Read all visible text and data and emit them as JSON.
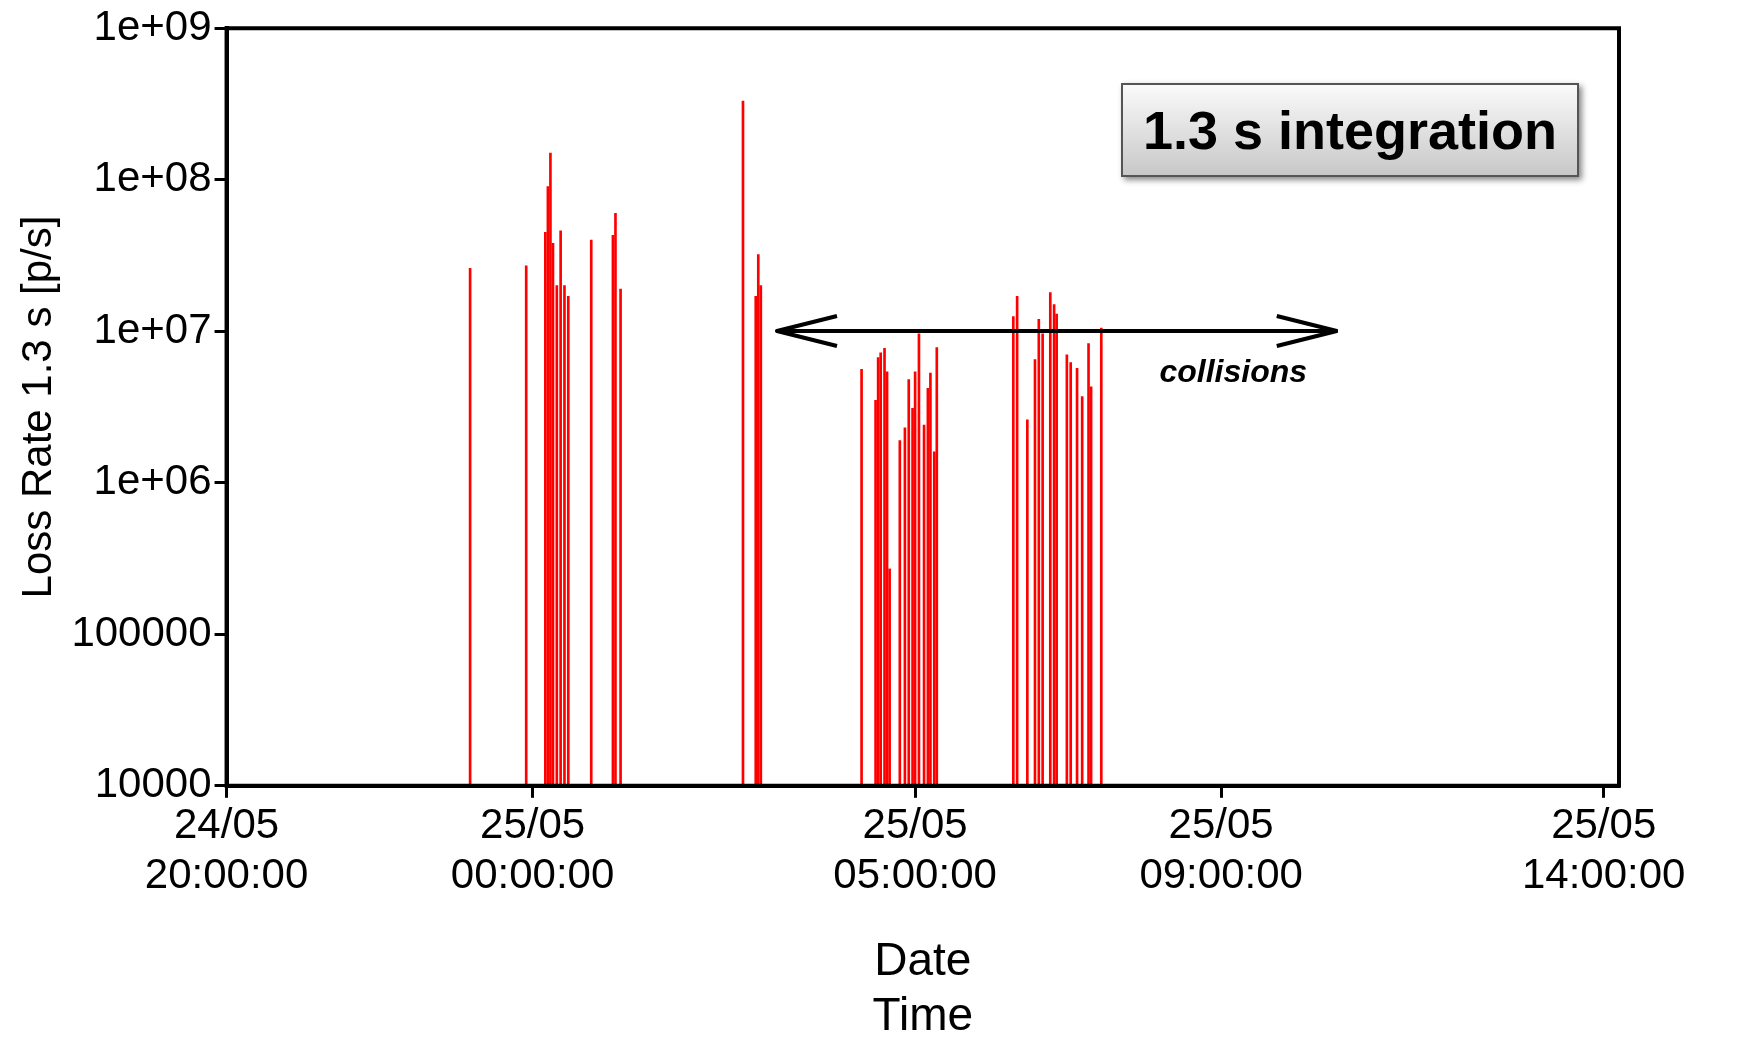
{
  "chart_data": {
    "type": "bar",
    "xlabel": "Date\nTime",
    "ylabel": "Loss Rate 1.3 s [p/s]",
    "log": "y",
    "legend": false,
    "grid": false,
    "xlim": [
      "--05-24T20:00",
      "--05-25T14:12"
    ],
    "xticks": [
      {
        "value": "--05-24T20:00",
        "label": "24/05\n20:00:00"
      },
      {
        "value": "--05-25T00:00",
        "label": "25/05\n00:00:00"
      },
      {
        "value": "--05-25T05:00",
        "label": "25/05\n05:00:00"
      },
      {
        "value": "--05-25T09:00",
        "label": "25/05\n09:00:00"
      },
      {
        "value": "--05-25T14:00",
        "label": "25/05\n14:00:00"
      }
    ],
    "ylim": [
      10000,
      1000000000
    ],
    "yticks": [
      {
        "value": 10000,
        "label": "10000"
      },
      {
        "value": 100000,
        "label": "100000"
      },
      {
        "value": 1000000,
        "label": "1e+06"
      },
      {
        "value": 10000000,
        "label": "1e+07"
      },
      {
        "value": 100000000,
        "label": "1e+08"
      },
      {
        "value": 1000000000,
        "label": "1e+09"
      }
    ],
    "annotations": [
      "1.3 s integration",
      "collisions"
    ],
    "series": [
      {
        "color": "#ff0000",
        "x": [
          "--05-24T23:11",
          "--05-24T23:55",
          "--05-25T00:10",
          "--05-25T00:12",
          "--05-25T00:14",
          "--05-25T00:16",
          "--05-25T00:19",
          "--05-25T00:22",
          "--05-25T00:25",
          "--05-25T00:28",
          "--05-25T00:46",
          "--05-25T01:03",
          "--05-25T01:05",
          "--05-25T01:09",
          "--05-25T02:45",
          "--05-25T02:55",
          "--05-25T02:57",
          "--05-25T02:59",
          "--05-25T04:18",
          "--05-25T04:29",
          "--05-25T04:31",
          "--05-25T04:33",
          "--05-25T04:36",
          "--05-25T04:38",
          "--05-25T04:40",
          "--05-25T04:48",
          "--05-25T04:52",
          "--05-25T04:55",
          "--05-25T04:58",
          "--05-25T05:00",
          "--05-25T05:03",
          "--05-25T05:07",
          "--05-25T05:10",
          "--05-25T05:12",
          "--05-25T05:15",
          "--05-25T05:17",
          "--05-25T06:17",
          "--05-25T06:20",
          "--05-25T06:28",
          "--05-25T06:34",
          "--05-25T06:37",
          "--05-25T06:40",
          "--05-25T06:46",
          "--05-25T06:49",
          "--05-25T06:51",
          "--05-25T06:59",
          "--05-25T07:02",
          "--05-25T07:07",
          "--05-25T07:11",
          "--05-25T07:16",
          "--05-25T07:18",
          "--05-25T07:26"
        ],
        "values": [
          26000000,
          27000000,
          45000000,
          90000000,
          150000000,
          38000000,
          20000000,
          46000000,
          20000000,
          17000000,
          40000000,
          43000000,
          60000000,
          19000000,
          330000000,
          17000000,
          32000000,
          20000000,
          5600000,
          3500000,
          6700000,
          7200000,
          7700000,
          5400000,
          270000,
          1900000,
          2300000,
          4800000,
          3100000,
          5400000,
          9600000,
          2400000,
          4200000,
          5300000,
          1600000,
          7800000,
          12500000,
          17000000,
          2600000,
          6500000,
          12000000,
          9600000,
          18000000,
          15000000,
          13000000,
          7000000,
          6200000,
          5700000,
          3700000,
          8300000,
          4300000,
          10500000
        ]
      }
    ]
  }
}
